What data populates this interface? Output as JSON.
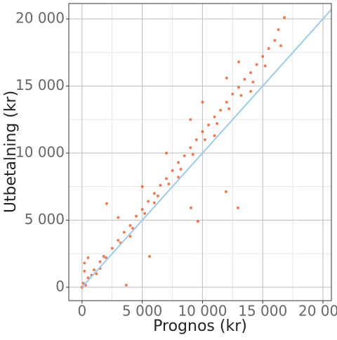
{
  "chart_data": {
    "type": "scatter",
    "x_label": "Prognos (kr)",
    "y_label": "Utbetalning (kr)",
    "color": "#e8501b",
    "grid": true,
    "xlim": [
      -1100,
      20700
    ],
    "ylim": [
      -1000,
      21150
    ],
    "xticks": [
      0,
      {
        "value": 5000,
        "label": "5 000"
      },
      {
        "value": 10000,
        "label": "10 000"
      },
      {
        "value": 15000,
        "label": "15 000"
      },
      {
        "value": 20000,
        "label": "20 000"
      }
    ],
    "yticks": [
      0,
      {
        "value": 5000,
        "label": "5 000"
      },
      {
        "value": 10000,
        "label": "10 000"
      },
      {
        "value": 15000,
        "label": "15 000"
      },
      {
        "value": 20000,
        "label": "20 000"
      }
    ],
    "minor_xticks": [
      2500,
      7500,
      12500,
      17500
    ],
    "minor_yticks": [
      2500,
      7500,
      12500,
      17500
    ],
    "reference_line": {
      "color": "#9ecbea",
      "x": [
        0,
        20700
      ],
      "y": [
        0,
        20700
      ]
    },
    "x": [
      0,
      100,
      200,
      300,
      500,
      800,
      1000,
      1200,
      1500,
      1800,
      2000,
      2040,
      3670,
      5600,
      9620,
      9040,
      11950,
      12940,
      2500,
      3000,
      3200,
      3500,
      4000,
      4200,
      4500,
      5000,
      5200,
      5500,
      6000,
      6300,
      6500,
      7000,
      7200,
      7500,
      8000,
      8200,
      8500,
      9000,
      9200,
      9500,
      10000,
      10200,
      10500,
      11000,
      11200,
      11500,
      12000,
      12200,
      12500,
      13000,
      13200,
      13500,
      14000,
      14200,
      14500,
      15000,
      15200,
      15500,
      16000,
      16300,
      16800,
      7000,
      9000,
      5000,
      13000,
      4000,
      8000,
      11000,
      14000,
      6000,
      3000,
      10000,
      12000,
      1500,
      500,
      200,
      16500
    ],
    "y": [
      0,
      300,
      1200,
      150,
      700,
      900,
      1300,
      1000,
      1900,
      2300,
      2200,
      6230,
      160,
      2300,
      4920,
      5920,
      7120,
      5920,
      2900,
      3500,
      3300,
      4100,
      4600,
      4400,
      5300,
      5800,
      5500,
      6400,
      7000,
      6800,
      7600,
      8100,
      7700,
      8700,
      9300,
      8800,
      9800,
      10400,
      9900,
      11000,
      11600,
      11000,
      12100,
      12700,
      12200,
      13200,
      13800,
      13300,
      14400,
      14900,
      14300,
      15500,
      16000,
      15300,
      16600,
      17200,
      16500,
      17800,
      18400,
      19200,
      20100,
      10000,
      12500,
      7500,
      16800,
      3800,
      8200,
      11300,
      14600,
      6300,
      5200,
      13800,
      15600,
      1400,
      2200,
      1800,
      18000
    ]
  }
}
